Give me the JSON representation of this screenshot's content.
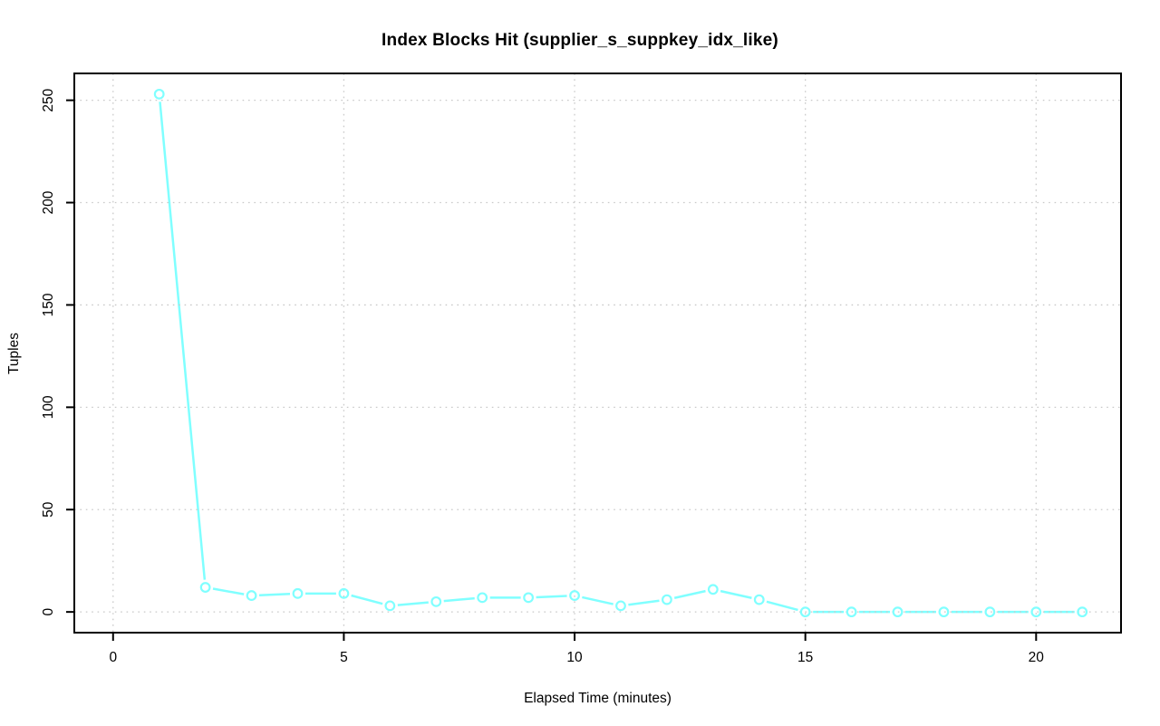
{
  "title": "Index Blocks Hit (supplier_s_suppkey_idx_like)",
  "chart_data": {
    "type": "line",
    "title": "Index Blocks Hit (supplier_s_suppkey_idx_like)",
    "xlabel": "Elapsed Time (minutes)",
    "ylabel": "Tuples",
    "x": [
      1,
      2,
      3,
      4,
      5,
      6,
      7,
      8,
      9,
      10,
      11,
      12,
      13,
      14,
      15,
      16,
      17,
      18,
      19,
      20,
      21
    ],
    "values": [
      253,
      12,
      8,
      9,
      9,
      3,
      5,
      7,
      7,
      8,
      3,
      6,
      11,
      6,
      0,
      0,
      0,
      0,
      0,
      0,
      0
    ],
    "x_ticks": [
      0,
      5,
      10,
      15,
      20
    ],
    "y_ticks": [
      0,
      50,
      100,
      150,
      200,
      250
    ],
    "xlim": [
      -0.84,
      21.84
    ],
    "ylim": [
      -10.12,
      263.12
    ],
    "grid": "dotted",
    "grid_color": "#c9c9c9",
    "line_color": "#80ffff",
    "marker": "open-circle",
    "marker_style": "type-b-gapped-segments",
    "axis_color": "#000000",
    "legend_position": "none"
  }
}
